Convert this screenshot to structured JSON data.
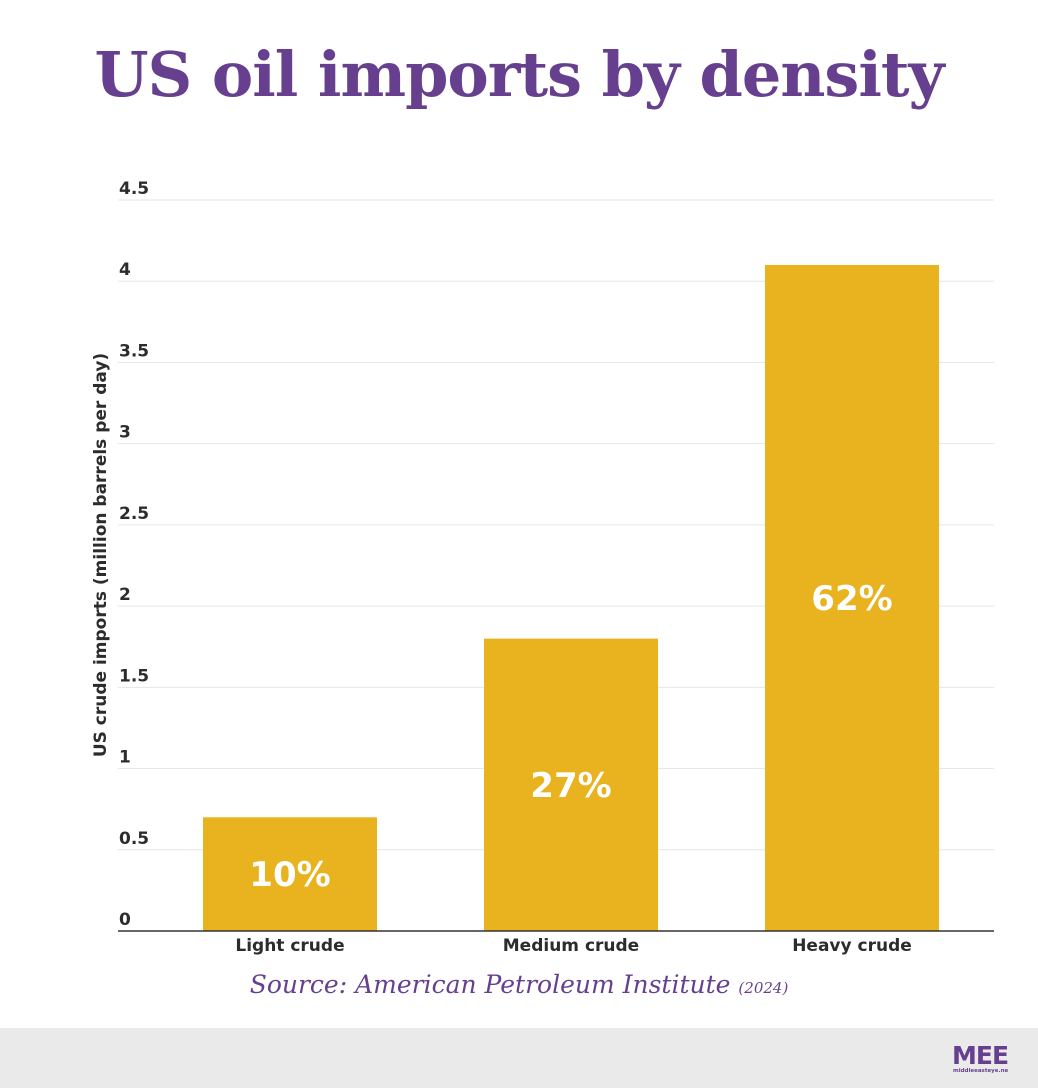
{
  "title": "US oil imports by density",
  "source": {
    "label": "Source: American Petroleum Institute",
    "year": "(2024)"
  },
  "logo": {
    "text": "MEE",
    "subtext": "middleeasteye.net"
  },
  "colors": {
    "title": "#673f8f",
    "bar": "#e8b31e",
    "footer": "#ebeaea"
  },
  "chart_data": {
    "type": "bar",
    "title": "US oil imports by density",
    "xlabel": "",
    "ylabel": "US crude imports (million barrels per day)",
    "categories": [
      "Light crude",
      "Medium crude",
      "Heavy crude"
    ],
    "values": [
      0.7,
      1.8,
      4.1
    ],
    "data_labels": [
      "10%",
      "27%",
      "62%"
    ],
    "ylim": [
      0,
      4.5
    ],
    "yticks": [
      "0",
      "0.5",
      "1",
      "1.5",
      "2",
      "2.5",
      "3",
      "3.5",
      "4",
      "4.5"
    ],
    "grid": true,
    "legend": "none"
  }
}
